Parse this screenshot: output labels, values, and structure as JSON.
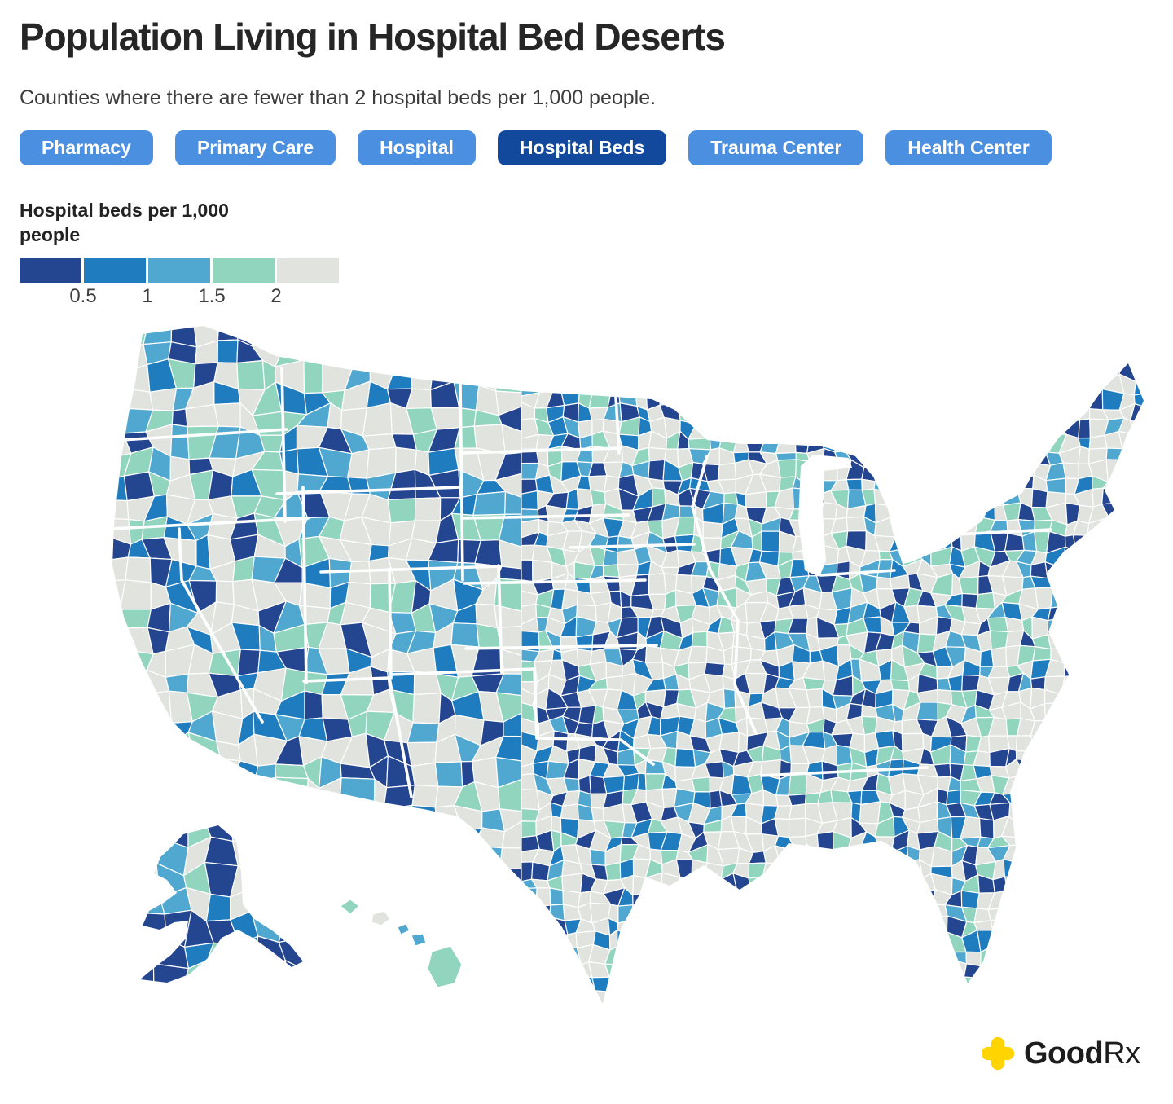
{
  "header": {
    "title": "Population Living in Hospital Bed Deserts",
    "subtitle": "Counties where there are fewer than 2 hospital beds per 1,000 people."
  },
  "filters": {
    "buttons": [
      {
        "label": "Pharmacy",
        "active": false
      },
      {
        "label": "Primary Care",
        "active": false
      },
      {
        "label": "Hospital",
        "active": false
      },
      {
        "label": "Hospital Beds",
        "active": true
      },
      {
        "label": "Trauma Center",
        "active": false
      },
      {
        "label": "Health Center",
        "active": false
      }
    ],
    "inactive_color": "#4B8FE0",
    "active_color": "#12499C"
  },
  "legend": {
    "title": "Hospital beds per 1,000 people",
    "ticks": [
      "0.5",
      "1",
      "1.5",
      "2"
    ]
  },
  "footer": {
    "brand_bold": "Good",
    "brand_suffix": "Rx",
    "logo_color": "#FFD400"
  },
  "chart_data": {
    "type": "choropleth_map",
    "title": "Population Living in Hospital Bed Deserts",
    "subtitle": "Counties where there are fewer than 2 hospital beds per 1,000 people.",
    "region": "United States counties (Albers USA projection incl. Alaska and Hawaii)",
    "metric": "Hospital beds per 1,000 people",
    "legend_position": "top-left",
    "tick_values": [
      0.5,
      1,
      1.5,
      2
    ],
    "bins": [
      {
        "label": "< 0.5",
        "color": "#24458F"
      },
      {
        "label": "0.5 - 1",
        "color": "#1F7CBF"
      },
      {
        "label": "1 - 1.5",
        "color": "#50A8D0"
      },
      {
        "label": "1.5 - 2",
        "color": "#92D5BF"
      },
      {
        "label": ">= 2",
        "color": "#E1E3DF"
      }
    ],
    "approx_share_of_counties_by_bin": {
      "< 0.5": 0.15,
      "0.5 - 1": 0.13,
      "1 - 1.5": 0.12,
      "1.5 - 2": 0.15,
      ">= 2": 0.45
    },
    "filters": [
      "Pharmacy",
      "Primary Care",
      "Hospital",
      "Hospital Beds",
      "Trauma Center",
      "Health Center"
    ],
    "active_filter": "Hospital Beds",
    "county_borders": "white thin lines",
    "state_borders": "white thick lines",
    "note": "Individual county values are not labeled in the image; map shows one of five legend bins per county."
  },
  "map": {
    "palette": {
      "navy": "#24458F",
      "blue": "#1F7CBF",
      "light_blue": "#50A8D0",
      "mint": "#92D5BF",
      "gray": "#E1E3DF",
      "water_background": "#FFFFFF"
    },
    "regions": [
      "Contiguous United States",
      "Alaska",
      "Hawaii"
    ]
  }
}
